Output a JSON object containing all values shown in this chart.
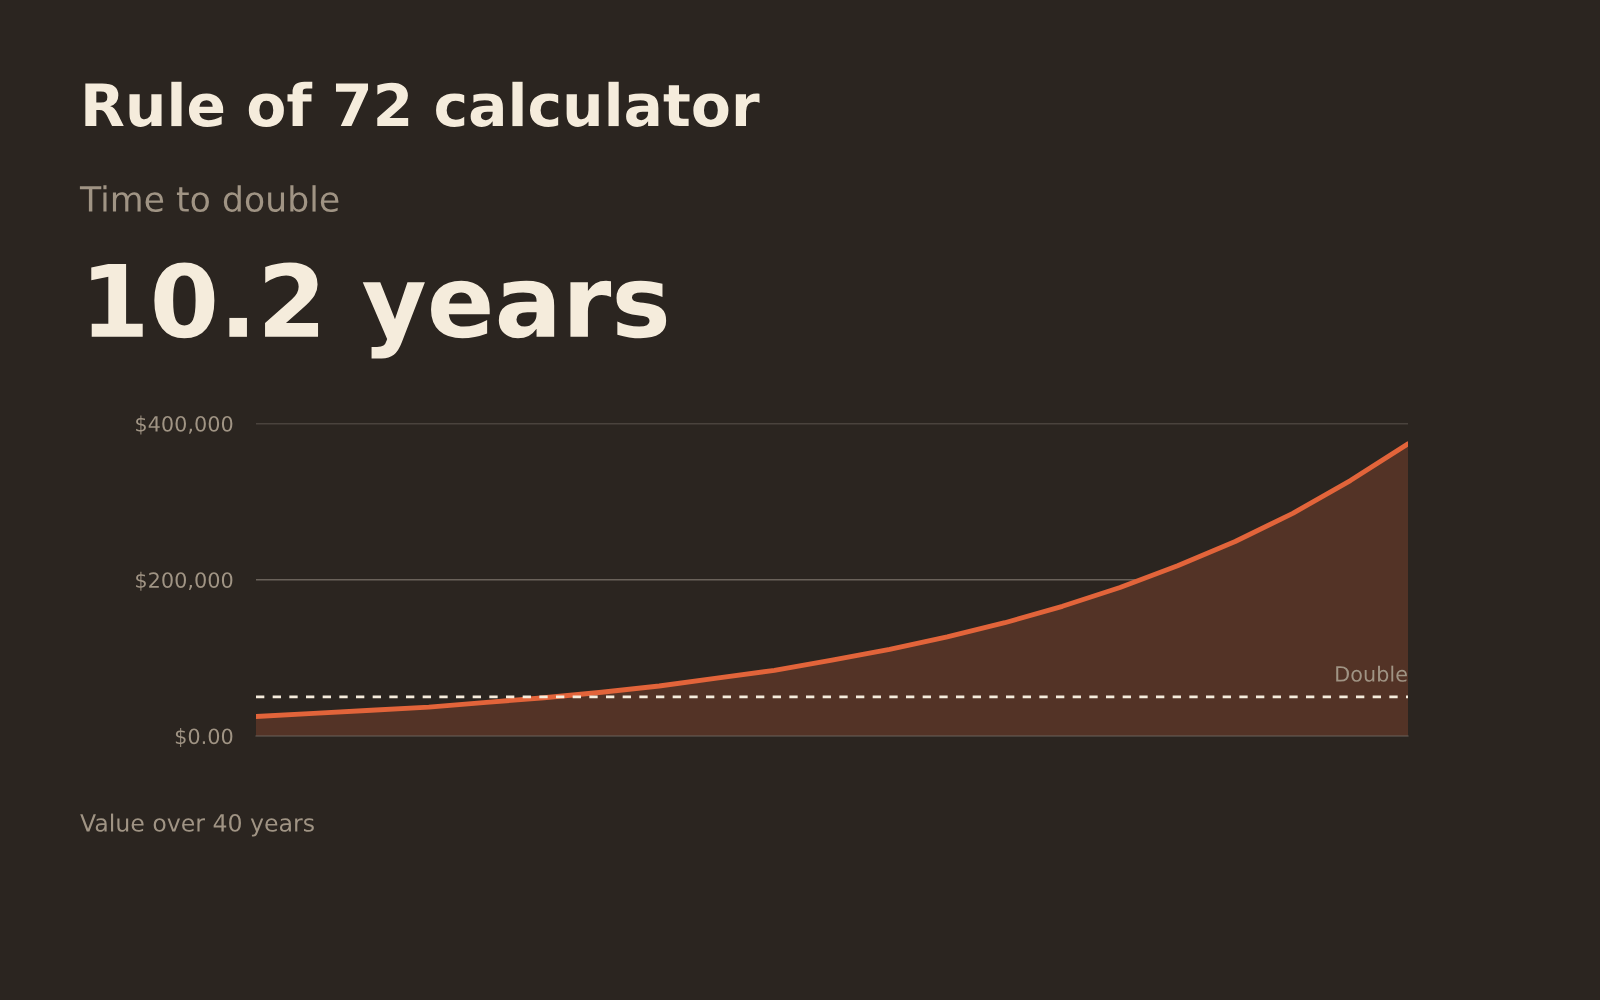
{
  "chart_data": {
    "type": "area",
    "title": "Rule of 72 calculator",
    "subtitle": "Time to double",
    "annotations": [
      "10.2 years",
      "Value over 40 years"
    ],
    "categories": [
      null,
      null,
      null,
      null,
      null,
      null,
      null,
      null,
      null,
      null,
      null,
      null,
      null,
      null,
      null,
      null,
      null,
      null,
      null,
      null,
      null
    ],
    "series": [
      {
        "color": "#e2643a",
        "values": [
          25000,
          29000,
          33000,
          37000,
          43000,
          49000,
          56000,
          64000,
          74000,
          84000,
          97000,
          111000,
          127000,
          145000,
          166000,
          190000,
          218000,
          249000,
          285000,
          327000,
          374000
        ]
      }
    ],
    "ylim": [
      0,
      400000
    ],
    "yticks": [
      {
        "value": 0,
        "label": "$0.00"
      },
      {
        "value": 200000,
        "label": "$200,000"
      },
      {
        "value": 400000,
        "label": "$400,000"
      }
    ],
    "ref_lines": [
      {
        "axis": "y",
        "value": 50000,
        "label": "Double",
        "color": "#f5ecdc",
        "line_style": "dashed"
      }
    ],
    "grid": "y",
    "tick_labels": "y",
    "legend": false
  }
}
